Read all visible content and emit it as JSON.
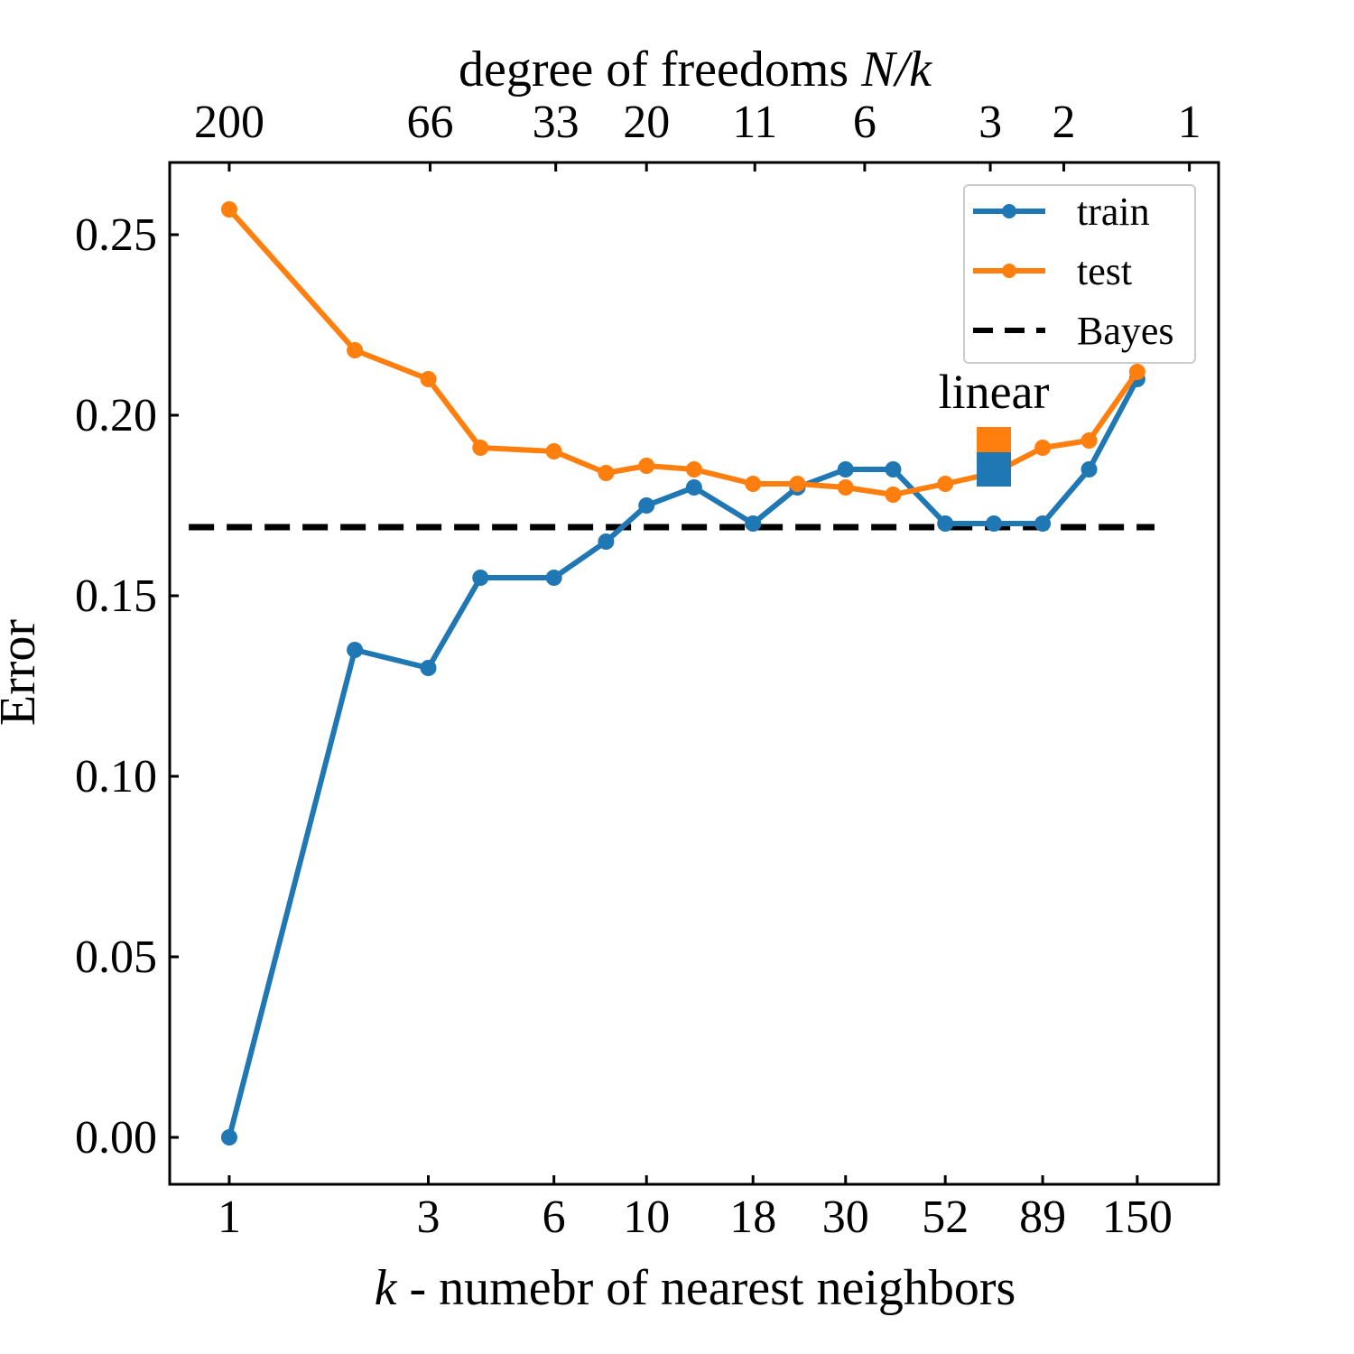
{
  "chart_data": {
    "type": "line",
    "xscale": "log",
    "xlabel_var": "k",
    "xlabel_rest": " - numebr of nearest neighbors",
    "ylabel": "Error",
    "top_label_text": "degree of freedoms ",
    "top_label_var": "N/k",
    "xlim": [
      0.72,
      235
    ],
    "ylim": [
      -0.013,
      0.27
    ],
    "bottom_ticks": [
      {
        "value": 1,
        "label": "1"
      },
      {
        "value": 3,
        "label": "3"
      },
      {
        "value": 6,
        "label": "6"
      },
      {
        "value": 10,
        "label": "10"
      },
      {
        "value": 18,
        "label": "18"
      },
      {
        "value": 30,
        "label": "30"
      },
      {
        "value": 52,
        "label": "52"
      },
      {
        "value": 89,
        "label": "89"
      },
      {
        "value": 150,
        "label": "150"
      }
    ],
    "top_ticks": [
      {
        "value": 200,
        "label": "200"
      },
      {
        "value": 66,
        "label": "66"
      },
      {
        "value": 33,
        "label": "33"
      },
      {
        "value": 20,
        "label": "20"
      },
      {
        "value": 11,
        "label": "11"
      },
      {
        "value": 6,
        "label": "6"
      },
      {
        "value": 3,
        "label": "3"
      },
      {
        "value": 2,
        "label": "2"
      },
      {
        "value": 1,
        "label": "1"
      }
    ],
    "y_ticks": [
      {
        "value": 0.0,
        "label": "0.00"
      },
      {
        "value": 0.05,
        "label": "0.05"
      },
      {
        "value": 0.1,
        "label": "0.10"
      },
      {
        "value": 0.15,
        "label": "0.15"
      },
      {
        "value": 0.2,
        "label": "0.20"
      },
      {
        "value": 0.25,
        "label": "0.25"
      }
    ],
    "k": [
      1,
      2,
      3,
      4,
      6,
      8,
      10,
      13,
      18,
      23,
      30,
      39,
      52,
      68,
      89,
      115,
      150
    ],
    "series": [
      {
        "name": "train",
        "color": "#1f77b4",
        "marker": "circle",
        "values": [
          0.0,
          0.135,
          0.13,
          0.155,
          0.155,
          0.165,
          0.175,
          0.18,
          0.17,
          0.18,
          0.185,
          0.185,
          0.17,
          0.17,
          0.17,
          0.185,
          0.21
        ]
      },
      {
        "name": "test",
        "color": "#ff7f0e",
        "marker": "circle",
        "values": [
          0.257,
          0.218,
          0.21,
          0.191,
          0.19,
          0.184,
          0.186,
          0.185,
          0.181,
          0.181,
          0.18,
          0.178,
          0.181,
          0.184,
          0.191,
          0.193,
          0.212
        ]
      },
      {
        "name": "Bayes",
        "color": "#000000",
        "style": "dashed",
        "value": 0.169,
        "x_range": [
          0.8,
          165
        ]
      }
    ],
    "annotations": [
      {
        "text": "linear",
        "x": 68,
        "y": 0.205,
        "markers": [
          {
            "series": "test",
            "value": 0.192,
            "color": "#ff7f0e",
            "marker": "square"
          },
          {
            "series": "train",
            "value": 0.185,
            "color": "#1f77b4",
            "marker": "square"
          }
        ]
      }
    ],
    "legend": {
      "placement": "top-right",
      "entries": [
        "train",
        "test",
        "Bayes"
      ]
    },
    "grid": false
  }
}
